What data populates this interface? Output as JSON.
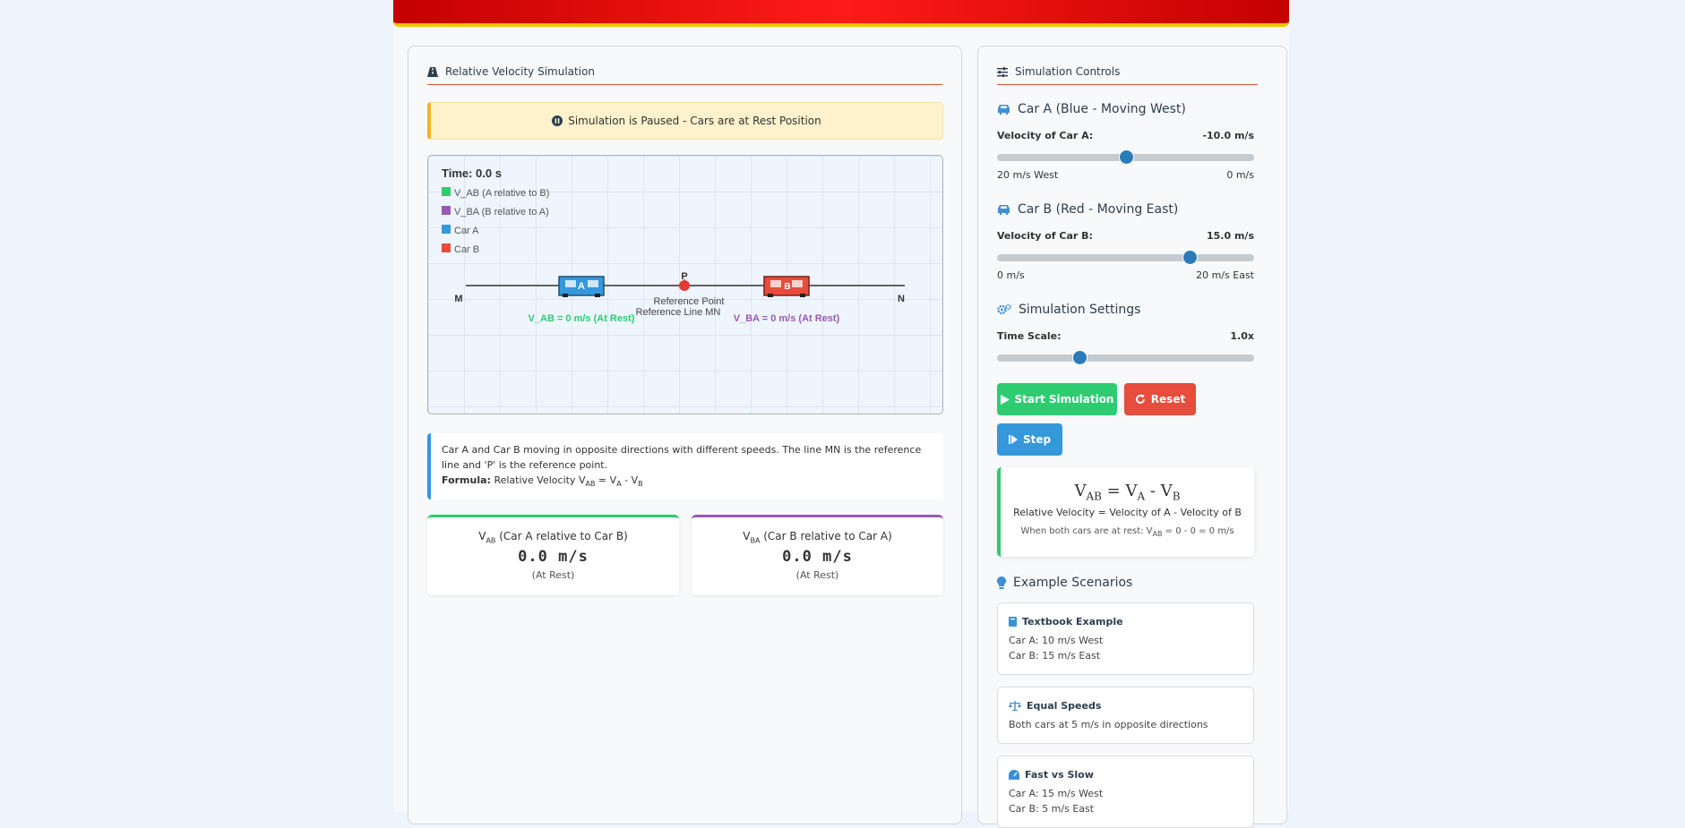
{
  "left_panel": {
    "title": "Relative Velocity Simulation",
    "title_icon": "road-icon"
  },
  "alert": {
    "icon": "pause-circle-icon",
    "text": "Simulation is Paused - Cars are at Rest Position"
  },
  "simulation": {
    "time": "Time: 0.0 s",
    "legend": [
      {
        "label": "V_AB (A relative to B)",
        "color": "#2ecc71"
      },
      {
        "label": "V_BA (B relative to A)",
        "color": "#9b59b6"
      },
      {
        "label": "Car A",
        "color": "#3498db"
      },
      {
        "label": "Car B",
        "color": "#e74c3c"
      }
    ],
    "point_label": "P",
    "left_end": "M",
    "right_end": "N",
    "car_a_label": "A",
    "car_b_label": "B",
    "ref_point": "Reference Point",
    "ref_line": "Reference Line MN",
    "vab_text": "V_AB = 0 m/s (At Rest)",
    "vba_text": "V_BA = 0 m/s (At Rest)"
  },
  "info": {
    "text": "Car A and Car B moving in opposite directions with different speeds. The line MN is the reference line and 'P' is the reference point.",
    "formula_label": "Formula:",
    "formula_prefix": "Relative Velocity V",
    "sub_ab": "AB",
    "eq": " = V",
    "sub_a": "A",
    "minus": " - V",
    "sub_b": "B"
  },
  "cards": {
    "ab": {
      "v": "V",
      "sub": "AB",
      "title_rest": " (Car A relative to Car B)",
      "value": "0.0 m/s",
      "state": "(At Rest)"
    },
    "ba": {
      "v": "V",
      "sub": "BA",
      "title_rest": " (Car B relative to Car A)",
      "value": "0.0 m/s",
      "state": "(At Rest)"
    }
  },
  "controls": {
    "title": "Simulation Controls",
    "title_icon": "sliders-icon",
    "car_a": {
      "heading": "Car A (Blue - Moving West)",
      "icon": "car-icon",
      "label": "Velocity of Car A:",
      "value": "-10.0 m/s",
      "min_label": "20 m/s West",
      "max_label": "0 m/s",
      "slider_fraction": 0.5
    },
    "car_b": {
      "heading": "Car B (Red - Moving East)",
      "icon": "car-icon",
      "label": "Velocity of Car B:",
      "value": "15.0 m/s",
      "min_label": "0 m/s",
      "max_label": "20 m/s East",
      "slider_fraction": 0.75
    },
    "settings": {
      "heading": "Simulation Settings",
      "icon": "gears-icon",
      "label": "Time Scale:",
      "value": "1.0x",
      "slider_fraction": 0.32
    },
    "buttons": {
      "start": "Start Simulation",
      "reset": "Reset",
      "step": "Step"
    },
    "formula": {
      "v": "V",
      "sub_ab": "AB",
      "eq": " = V",
      "sub_a": "A",
      "minus": " - V",
      "sub_b": "B",
      "line1": "Relative Velocity = Velocity of A - Velocity of B",
      "line2_prefix": "When both cars are at rest: V",
      "line2_sub": "AB",
      "line2_suffix": " = 0 - 0 = 0 m/s"
    },
    "examples": {
      "heading": "Example Scenarios",
      "icon": "lightbulb-icon",
      "items": [
        {
          "title": "Textbook Example",
          "icon": "book-icon",
          "lines": [
            "Car A: 10 m/s West",
            "Car B: 15 m/s East"
          ]
        },
        {
          "title": "Equal Speeds",
          "icon": "balance-scale-icon",
          "lines": [
            "Both cars at 5 m/s in opposite directions"
          ]
        },
        {
          "title": "Fast vs Slow",
          "icon": "gauge-icon",
          "lines": [
            "Car A: 15 m/s West",
            "Car B: 5 m/s East"
          ]
        }
      ]
    }
  }
}
